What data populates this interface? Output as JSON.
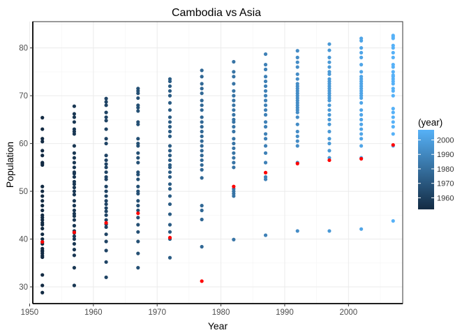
{
  "chart_data": {
    "type": "scatter",
    "title": "Cambodia vs Asia",
    "xlabel": "Year",
    "ylabel": "Population",
    "xlim": [
      1950.5,
      2008.5
    ],
    "ylim": [
      26.5,
      85.5
    ],
    "x_ticks": [
      1950,
      1960,
      1970,
      1980,
      1990,
      2000
    ],
    "y_ticks": [
      30,
      40,
      50,
      60,
      70,
      80
    ],
    "grid": true,
    "legend": {
      "title": "(year)",
      "placement": "right",
      "type": "continuous colorbar",
      "range": [
        1952,
        2007
      ],
      "ticks": [
        1960,
        1970,
        1980,
        1990,
        2000
      ],
      "color_low": "#132b43",
      "color_high": "#56b1f7"
    },
    "highlight_color": "#ff0000",
    "series": [
      {
        "color_by": "year",
        "points": [
          {
            "year": 1952,
            "values": [
              28.8,
              30.3,
              32.5,
              36.2,
              36.5,
              37.0,
              37.4,
              37.6,
              38.0,
              39.0,
              39.4,
              40.0,
              41.0,
              42.2,
              43.0,
              43.4,
              44.0,
              44.5,
              45.0,
              46.0,
              47.0,
              48.0,
              49.0,
              50.0,
              51.0,
              55.5,
              55.8,
              56.0,
              57.5,
              58.5,
              60.4,
              61.0,
              63.0,
              65.4
            ]
          },
          {
            "year": 1957,
            "values": [
              30.3,
              34.0,
              36.6,
              37.8,
              39.0,
              40.0,
              40.6,
              41.3,
              41.7,
              42.8,
              44.0,
              44.8,
              45.3,
              46.0,
              47.0,
              48.0,
              49.3,
              50.0,
              50.8,
              51.5,
              52.0,
              53.0,
              53.7,
              54.0,
              55.0,
              56.0,
              57.0,
              58.0,
              59.5,
              62.0,
              62.5,
              63.0,
              64.5,
              65.5,
              66.2,
              67.8
            ]
          },
          {
            "year": 1962,
            "values": [
              32.0,
              35.2,
              37.6,
              39.5,
              41.0,
              42.5,
              43.1,
              44.0,
              45.0,
              45.8,
              46.5,
              47.3,
              48.0,
              49.0,
              50.0,
              51.0,
              52.5,
              53.0,
              54.0,
              55.0,
              55.7,
              56.5,
              57.5,
              60.0,
              61.0,
              63.0,
              64.8,
              65.5,
              66.5,
              68.0,
              68.7,
              69.4
            ]
          },
          {
            "year": 1967,
            "values": [
              34.0,
              37.0,
              39.5,
              41.5,
              43.0,
              44.5,
              46.0,
              47.0,
              48.0,
              49.5,
              50.0,
              51.0,
              52.5,
              53.5,
              54.0,
              56.0,
              57.0,
              58.0,
              59.5,
              60.0,
              61.0,
              64.0,
              64.5,
              66.8,
              67.5,
              68.0,
              69.5,
              70.5,
              71.0,
              71.5
            ]
          },
          {
            "year": 1972,
            "values": [
              36.1,
              40.0,
              41.5,
              43.0,
              45.2,
              47.3,
              49.0,
              50.5,
              51.5,
              53.0,
              54.0,
              55.0,
              55.5,
              56.5,
              57.5,
              58.5,
              59.5,
              61.5,
              62.5,
              63.5,
              64.5,
              65.5,
              67.0,
              68.5,
              70.0,
              71.0,
              72.0,
              73.0,
              73.5
            ]
          },
          {
            "year": 1977,
            "values": [
              38.4,
              44.1,
              46.0,
              47.0,
              52.8,
              54.5,
              55.5,
              56.5,
              57.5,
              58.5,
              59.5,
              60.5,
              61.5,
              62.5,
              63.5,
              64.5,
              65.5,
              67.0,
              68.0,
              69.0,
              70.5,
              71.5,
              72.5,
              74.0,
              75.3
            ]
          },
          {
            "year": 1982,
            "values": [
              39.9,
              49.0,
              49.5,
              50.0,
              50.5,
              55.0,
              56.0,
              57.0,
              58.0,
              59.0,
              60.0,
              61.0,
              62.5,
              63.5,
              64.5,
              65.0,
              66.0,
              67.0,
              68.0,
              69.0,
              70.0,
              71.0,
              72.5,
              74.0,
              75.0,
              77.1
            ]
          },
          {
            "year": 1987,
            "values": [
              40.8,
              52.5,
              53.0,
              56.0,
              58.0,
              59.5,
              61.0,
              62.0,
              63.5,
              64.5,
              66.0,
              67.0,
              68.0,
              69.0,
              70.0,
              71.0,
              72.0,
              73.0,
              74.0,
              75.5,
              76.5,
              78.7
            ]
          },
          {
            "year": 1992,
            "values": [
              41.7,
              56.0,
              59.5,
              60.5,
              61.5,
              62.5,
              64.0,
              65.5,
              66.5,
              67.0,
              67.5,
              68.0,
              68.5,
              69.0,
              69.5,
              70.0,
              70.5,
              71.0,
              71.5,
              72.0,
              72.5,
              73.5,
              74.5,
              76.0,
              77.0,
              78.0,
              79.4
            ]
          },
          {
            "year": 1997,
            "values": [
              41.7,
              57.0,
              58.5,
              60.0,
              61.0,
              62.5,
              64.0,
              65.0,
              66.0,
              67.0,
              68.0,
              69.0,
              69.5,
              70.0,
              70.5,
              71.0,
              71.5,
              72.0,
              72.5,
              73.0,
              73.5,
              74.5,
              75.0,
              76.0,
              77.0,
              78.0,
              79.5,
              80.8
            ]
          },
          {
            "year": 2002,
            "values": [
              42.1,
              57.0,
              59.5,
              61.0,
              62.0,
              63.0,
              64.0,
              65.0,
              66.0,
              67.0,
              68.5,
              69.5,
              70.0,
              70.5,
              71.0,
              71.5,
              72.0,
              72.5,
              73.0,
              73.5,
              74.0,
              75.0,
              76.5,
              78.0,
              79.0,
              80.0,
              81.5,
              82.0
            ]
          },
          {
            "year": 2007,
            "values": [
              43.8,
              59.5,
              62.0,
              63.5,
              64.5,
              65.5,
              66.5,
              67.3,
              70.0,
              71.0,
              71.5,
              72.5,
              73.0,
              73.5,
              74.0,
              74.3,
              75.0,
              76.0,
              76.5,
              78.0,
              79.0,
              80.0,
              80.5,
              82.0,
              82.3,
              82.6
            ]
          }
        ]
      },
      {
        "name": "Cambodia",
        "color": "#ff0000",
        "x": [
          1952,
          1957,
          1962,
          1967,
          1972,
          1977,
          1982,
          1987,
          1992,
          1997,
          2002,
          2007
        ],
        "y": [
          39.4,
          41.4,
          43.4,
          45.4,
          40.3,
          31.2,
          51.0,
          53.9,
          55.8,
          56.5,
          56.8,
          59.7
        ]
      }
    ]
  }
}
